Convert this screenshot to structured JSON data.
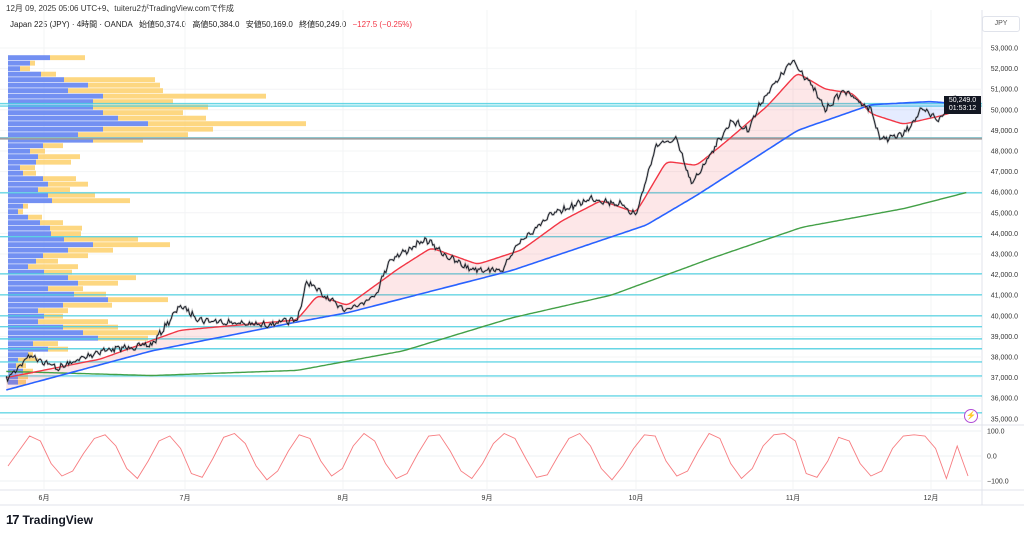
{
  "caption": "12月 09, 2025 05:06 UTC+9、tuiteru2がTradingView.comで作成",
  "legend": {
    "symbol": "Japan 225 (JPY) · 4時間 · OANDA",
    "open": "始値50,374.0",
    "high": "高値50,384.0",
    "low": "安値50,169.0",
    "close": "終値50,249.0",
    "change": "−127.5 (−0.25%)"
  },
  "currency_label": "JPY",
  "last_price_label": "50,249.0",
  "countdown_label": "01:53:12",
  "brand": {
    "mark": "17",
    "name": "TradingView"
  },
  "icons": {
    "alert": "lightning-icon",
    "logo": "tradingview-logo"
  },
  "colors": {
    "price": "#131722",
    "ema_fast": "#f23645",
    "ema_mid": "#2962ff",
    "ema_slow": "#43a047",
    "levels": "#4dd0e1",
    "poc": "#9e9e9e",
    "vp_up": "#5b7cf0",
    "vp_down": "#fdd06b",
    "oscillator": "#f77c80"
  },
  "chart_data": {
    "type": "line",
    "title": "",
    "y_axis": {
      "range": [
        35000,
        53000
      ],
      "ticks": [
        "53,000.0",
        "52,000.0",
        "51,000.0",
        "50,000.0",
        "49,000.0",
        "48,000.0",
        "47,000.0",
        "46,000.0",
        "45,000.0",
        "44,000.0",
        "43,000.0",
        "42,000.0",
        "41,000.0",
        "40,000.0",
        "39,000.0",
        "38,000.0",
        "37,000.0",
        "36,000.0",
        "35,000.0"
      ]
    },
    "x_axis": {
      "ticks": [
        {
          "label": "6月",
          "date": "2025-06-01"
        },
        {
          "label": "7月",
          "date": "2025-07-01"
        },
        {
          "label": "8月",
          "date": "2025-08-01"
        },
        {
          "label": "9月",
          "date": "2025-09-01"
        },
        {
          "label": "10月",
          "date": "2025-10-01"
        },
        {
          "label": "11月",
          "date": "2025-11-01"
        },
        {
          "label": "12月",
          "date": "2025-12-01"
        }
      ]
    },
    "price": [
      [
        "2025-05-24",
        36900
      ],
      [
        "2025-05-29",
        38100
      ],
      [
        "2025-06-04",
        37450
      ],
      [
        "2025-06-13",
        38300
      ],
      [
        "2025-06-24",
        38600
      ],
      [
        "2025-06-30",
        40500
      ],
      [
        "2025-07-04",
        39800
      ],
      [
        "2025-07-16",
        39550
      ],
      [
        "2025-07-23",
        39800
      ],
      [
        "2025-07-25",
        41700
      ],
      [
        "2025-07-29",
        40800
      ],
      [
        "2025-08-02",
        40300
      ],
      [
        "2025-08-08",
        41000
      ],
      [
        "2025-08-11",
        42700
      ],
      [
        "2025-08-19",
        43700
      ],
      [
        "2025-08-23",
        42950
      ],
      [
        "2025-08-28",
        42300
      ],
      [
        "2025-09-04",
        42200
      ],
      [
        "2025-09-08",
        43700
      ],
      [
        "2025-09-14",
        44900
      ],
      [
        "2025-09-22",
        45700
      ],
      [
        "2025-09-28",
        45400
      ],
      [
        "2025-10-01",
        44900
      ],
      [
        "2025-10-05",
        48300
      ],
      [
        "2025-10-09",
        48550
      ],
      [
        "2025-10-12",
        46350
      ],
      [
        "2025-10-16",
        48000
      ],
      [
        "2025-10-20",
        49500
      ],
      [
        "2025-10-23",
        49000
      ],
      [
        "2025-10-26",
        50500
      ],
      [
        "2025-11-01",
        52400
      ],
      [
        "2025-11-05",
        51200
      ],
      [
        "2025-11-08",
        50000
      ],
      [
        "2025-11-12",
        50950
      ],
      [
        "2025-11-18",
        50000
      ],
      [
        "2025-11-20",
        48550
      ],
      [
        "2025-11-25",
        48800
      ],
      [
        "2025-11-29",
        50000
      ],
      [
        "2025-12-03",
        49500
      ],
      [
        "2025-12-06",
        50700
      ],
      [
        "2025-12-09",
        50249
      ]
    ],
    "ema_fast": [
      [
        "2025-05-24",
        37000
      ],
      [
        "2025-06-13",
        37900
      ],
      [
        "2025-06-30",
        39300
      ],
      [
        "2025-07-23",
        39800
      ],
      [
        "2025-07-27",
        41000
      ],
      [
        "2025-08-02",
        40500
      ],
      [
        "2025-08-13",
        42300
      ],
      [
        "2025-08-20",
        43300
      ],
      [
        "2025-08-30",
        42500
      ],
      [
        "2025-09-08",
        43200
      ],
      [
        "2025-09-16",
        44600
      ],
      [
        "2025-09-24",
        45600
      ],
      [
        "2025-10-01",
        45000
      ],
      [
        "2025-10-07",
        47500
      ],
      [
        "2025-10-13",
        47300
      ],
      [
        "2025-10-19",
        48500
      ],
      [
        "2025-10-27",
        50200
      ],
      [
        "2025-11-02",
        51800
      ],
      [
        "2025-11-08",
        51000
      ],
      [
        "2025-11-14",
        50800
      ],
      [
        "2025-11-18",
        49800
      ],
      [
        "2025-11-25",
        49300
      ],
      [
        "2025-12-03",
        49700
      ],
      [
        "2025-12-09",
        50100
      ]
    ],
    "ema_mid": [
      [
        "2025-05-24",
        36400
      ],
      [
        "2025-06-24",
        38300
      ],
      [
        "2025-07-23",
        39700
      ],
      [
        "2025-08-02",
        40150
      ],
      [
        "2025-09-06",
        42200
      ],
      [
        "2025-10-03",
        44400
      ],
      [
        "2025-10-13",
        45850
      ],
      [
        "2025-11-02",
        49000
      ],
      [
        "2025-11-18",
        50250
      ],
      [
        "2025-12-01",
        50400
      ],
      [
        "2025-12-09",
        50250
      ]
    ],
    "ema_slow": [
      [
        "2025-05-24",
        37300
      ],
      [
        "2025-06-24",
        37100
      ],
      [
        "2025-07-23",
        37350
      ],
      [
        "2025-08-14",
        38300
      ],
      [
        "2025-09-06",
        39900
      ],
      [
        "2025-09-26",
        41000
      ],
      [
        "2025-10-16",
        42800
      ],
      [
        "2025-11-03",
        44300
      ],
      [
        "2025-11-25",
        45200
      ],
      [
        "2025-12-09",
        46000
      ]
    ],
    "levels": [
      50300,
      50180,
      48640,
      45970,
      43840,
      42040,
      41020,
      40000,
      39470,
      38880,
      38400,
      37760,
      37080,
      36110,
      35290
    ],
    "poc_level": 48600,
    "volume_profile": {
      "top_price": 52650,
      "row_step": 267,
      "rows": [
        [
          42,
          77
        ],
        [
          22,
          27
        ],
        [
          12,
          22
        ],
        [
          33,
          48
        ],
        [
          56,
          147
        ],
        [
          80,
          152
        ],
        [
          60,
          155
        ],
        [
          95,
          258
        ],
        [
          85,
          165
        ],
        [
          85,
          200
        ],
        [
          95,
          175
        ],
        [
          110,
          198
        ],
        [
          140,
          298
        ],
        [
          95,
          205
        ],
        [
          70,
          180
        ],
        [
          85,
          135
        ],
        [
          35,
          55
        ],
        [
          22,
          37
        ],
        [
          30,
          72
        ],
        [
          28,
          63
        ],
        [
          12,
          27
        ],
        [
          15,
          28
        ],
        [
          35,
          68
        ],
        [
          40,
          80
        ],
        [
          30,
          62
        ],
        [
          40,
          87
        ],
        [
          44,
          122
        ],
        [
          15,
          20
        ],
        [
          10,
          15
        ],
        [
          20,
          34
        ],
        [
          32,
          55
        ],
        [
          42,
          74
        ],
        [
          43,
          73
        ],
        [
          56,
          130
        ],
        [
          85,
          162
        ],
        [
          60,
          105
        ],
        [
          35,
          80
        ],
        [
          28,
          50
        ],
        [
          20,
          70
        ],
        [
          36,
          64
        ],
        [
          60,
          128
        ],
        [
          70,
          110
        ],
        [
          40,
          75
        ],
        [
          66,
          98
        ],
        [
          100,
          160
        ],
        [
          55,
          104
        ],
        [
          30,
          60
        ],
        [
          36,
          55
        ],
        [
          30,
          100
        ],
        [
          55,
          110
        ],
        [
          75,
          150
        ],
        [
          90,
          140
        ],
        [
          25,
          50
        ],
        [
          40,
          60
        ],
        [
          20,
          25
        ],
        [
          10,
          30
        ],
        [
          8,
          18
        ],
        [
          15,
          25
        ],
        [
          10,
          20
        ],
        [
          10,
          18
        ]
      ]
    },
    "oscillator": {
      "ticks": [
        "100.0",
        "0.0",
        "−100.0"
      ],
      "range": [
        -100,
        100
      ],
      "values": [
        -40,
        20,
        80,
        60,
        -30,
        -80,
        -60,
        10,
        70,
        85,
        40,
        -50,
        -90,
        -20,
        60,
        80,
        30,
        -70,
        -85,
        -10,
        75,
        90,
        50,
        -40,
        -95,
        -60,
        20,
        85,
        70,
        -20,
        -80,
        -50,
        40,
        90,
        60,
        -30,
        -90,
        -70,
        10,
        80,
        85,
        20,
        -60,
        -90,
        -30,
        50,
        90,
        70,
        -10,
        -85,
        -75,
        0,
        70,
        90,
        40,
        -50,
        -95,
        -40,
        30,
        85,
        80,
        -20,
        -80,
        -60,
        20,
        90,
        70,
        -30,
        -90,
        -50,
        40,
        85,
        90,
        60,
        -70,
        -85,
        -20,
        75,
        60,
        -30,
        -80,
        -60,
        30,
        80,
        85,
        80,
        30,
        -90,
        40,
        -80
      ]
    }
  }
}
